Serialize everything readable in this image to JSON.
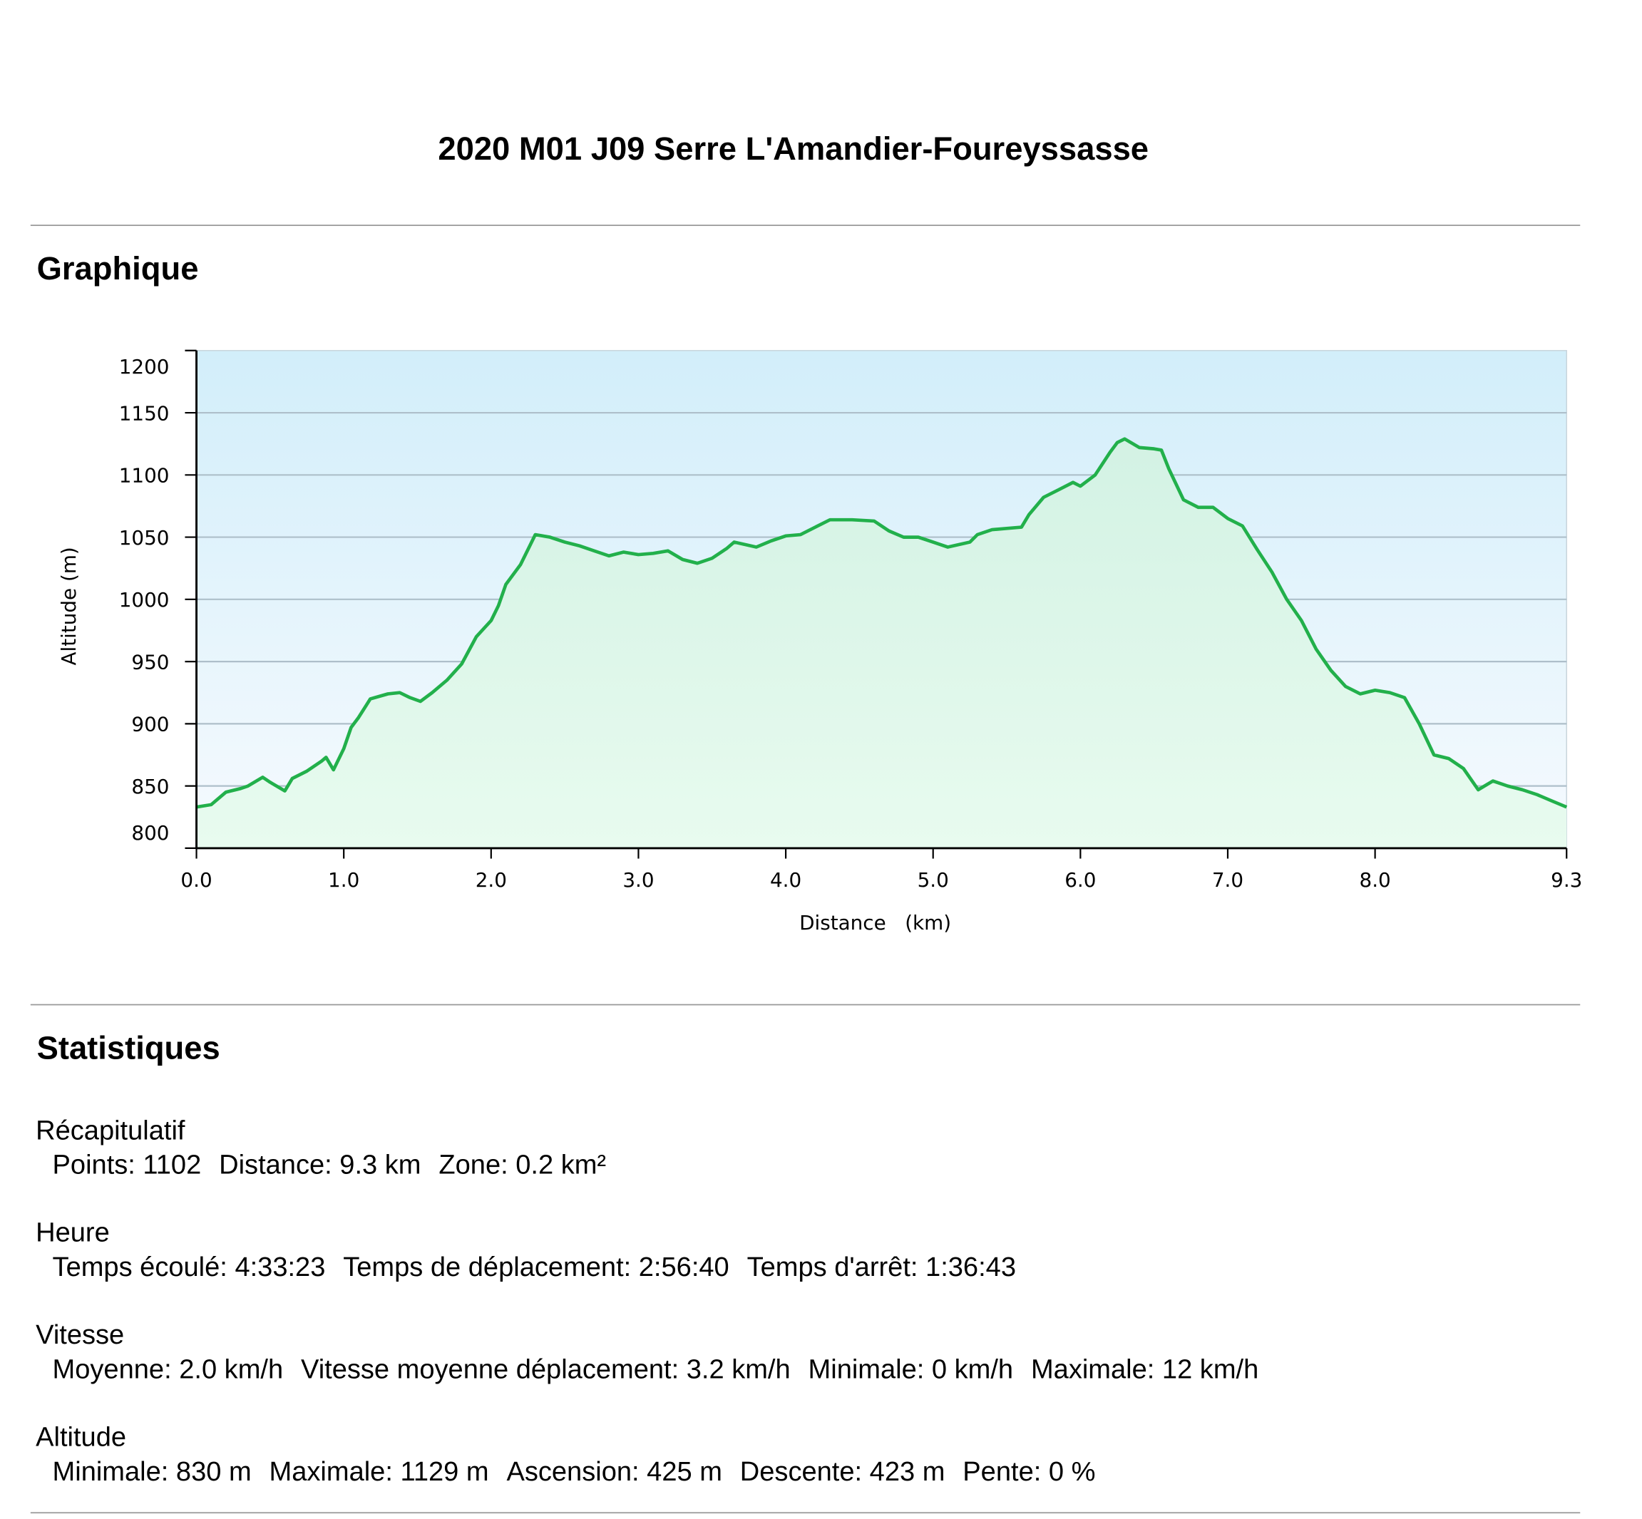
{
  "title": "2020 M01 J09 Serre L'Amandier-Foureyssasse",
  "sections": [
    {
      "heading": "Graphique"
    },
    {
      "heading": "Statistiques"
    }
  ],
  "stats": [
    {
      "name": "Récapitulatif",
      "items": [
        "Points: 1102",
        "Distance: 9.3 km",
        "Zone: 0.2 km²"
      ]
    },
    {
      "name": "Heure",
      "items": [
        "Temps écoulé: 4:33:23",
        "Temps de déplacement: 2:56:40",
        "Temps d'arrêt: 1:36:43"
      ]
    },
    {
      "name": "Vitesse",
      "items": [
        "Moyenne: 2.0 km/h",
        "Vitesse moyenne déplacement: 3.2 km/h",
        "Minimale: 0 km/h",
        "Maximale: 12 km/h"
      ]
    },
    {
      "name": "Altitude",
      "items": [
        "Minimale: 830 m",
        "Maximale: 1129 m",
        "Ascension: 425 m",
        "Descente: 423 m",
        "Pente: 0 %"
      ]
    }
  ],
  "chart_data": {
    "type": "line",
    "xlabel": "Distance   (km)",
    "ylabel": "Altitude (m)",
    "color": "#22b04b",
    "grid": true,
    "xlim": [
      0,
      9.3
    ],
    "ylim": [
      800,
      1200
    ],
    "xticks": [
      {
        "value": 0,
        "label": "0.0"
      },
      {
        "value": 1,
        "label": "1.0"
      },
      {
        "value": 2,
        "label": "2.0"
      },
      {
        "value": 3,
        "label": "3.0"
      },
      {
        "value": 4,
        "label": "4.0"
      },
      {
        "value": 5,
        "label": "5.0"
      },
      {
        "value": 6,
        "label": "6.0"
      },
      {
        "value": 7,
        "label": "7.0"
      },
      {
        "value": 8,
        "label": "8.0"
      },
      9.3
    ],
    "yticks": [
      800,
      850,
      900,
      950,
      1000,
      1050,
      1100,
      1150,
      1200
    ],
    "x": [
      0.0,
      0.1,
      0.2,
      0.3,
      0.35,
      0.45,
      0.5,
      0.6,
      0.65,
      0.75,
      0.85,
      0.88,
      0.93,
      1.0,
      1.05,
      1.1,
      1.18,
      1.3,
      1.38,
      1.45,
      1.52,
      1.6,
      1.7,
      1.8,
      1.9,
      2.0,
      2.05,
      2.1,
      2.2,
      2.3,
      2.4,
      2.5,
      2.6,
      2.7,
      2.8,
      2.9,
      3.0,
      3.1,
      3.2,
      3.3,
      3.4,
      3.5,
      3.6,
      3.65,
      3.8,
      3.9,
      4.0,
      4.1,
      4.2,
      4.3,
      4.45,
      4.6,
      4.7,
      4.8,
      4.9,
      5.0,
      5.1,
      5.25,
      5.3,
      5.4,
      5.5,
      5.6,
      5.65,
      5.75,
      5.85,
      5.95,
      6.0,
      6.1,
      6.2,
      6.25,
      6.3,
      6.4,
      6.5,
      6.55,
      6.6,
      6.7,
      6.8,
      6.9,
      7.0,
      7.1,
      7.2,
      7.3,
      7.4,
      7.5,
      7.6,
      7.7,
      7.8,
      7.9,
      8.0,
      8.1,
      8.2,
      8.3,
      8.4,
      8.5,
      8.6,
      8.7,
      8.8,
      8.9,
      9.0,
      9.1,
      9.2,
      9.3
    ],
    "values": [
      833,
      835,
      845,
      848,
      850,
      857,
      853,
      846,
      856,
      862,
      870,
      873,
      863,
      880,
      897,
      905,
      920,
      924,
      925,
      921,
      918,
      925,
      935,
      948,
      970,
      983,
      995,
      1012,
      1028,
      1052,
      1050,
      1046,
      1043,
      1039,
      1035,
      1038,
      1036,
      1037,
      1039,
      1032,
      1029,
      1033,
      1041,
      1046,
      1042,
      1047,
      1051,
      1052,
      1058,
      1064,
      1064,
      1063,
      1055,
      1050,
      1050,
      1046,
      1042,
      1046,
      1052,
      1056,
      1057,
      1058,
      1068,
      1082,
      1088,
      1094,
      1091,
      1100,
      1118,
      1126,
      1129,
      1122,
      1121,
      1120,
      1105,
      1080,
      1074,
      1074,
      1065,
      1059,
      1040,
      1022,
      1000,
      983,
      960,
      943,
      930,
      924,
      927,
      925,
      921,
      900,
      875,
      872,
      864,
      847,
      854,
      850,
      847,
      843,
      838,
      833
    ]
  }
}
